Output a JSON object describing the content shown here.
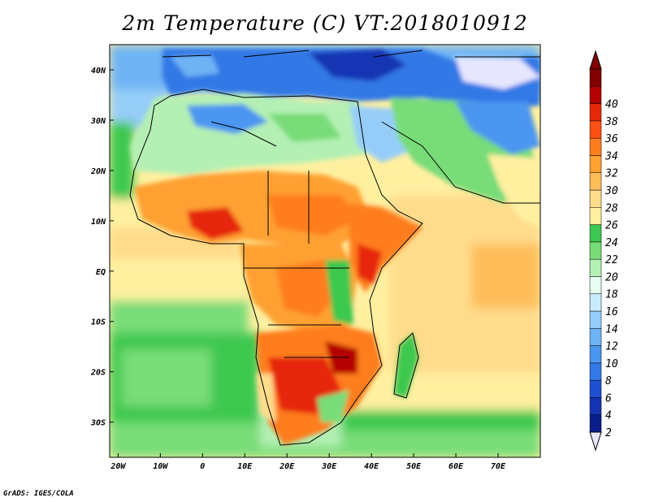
{
  "title": "2m Temperature (C) VT:2018010912",
  "credit": "GrADS: IGES/COLA",
  "map": {
    "lon_range": [
      -22,
      80
    ],
    "lat_range": [
      -37,
      45
    ],
    "lon_ticks": [
      {
        "value": -20,
        "label": "20W"
      },
      {
        "value": -10,
        "label": "10W"
      },
      {
        "value": 0,
        "label": "0"
      },
      {
        "value": 10,
        "label": "10E"
      },
      {
        "value": 20,
        "label": "20E"
      },
      {
        "value": 30,
        "label": "30E"
      },
      {
        "value": 40,
        "label": "40E"
      },
      {
        "value": 50,
        "label": "50E"
      },
      {
        "value": 60,
        "label": "60E"
      },
      {
        "value": 70,
        "label": "70E"
      }
    ],
    "lat_ticks": [
      {
        "value": 40,
        "label": "40N"
      },
      {
        "value": 30,
        "label": "30N"
      },
      {
        "value": 20,
        "label": "20N"
      },
      {
        "value": 10,
        "label": "10N"
      },
      {
        "value": 0,
        "label": "EQ"
      },
      {
        "value": -10,
        "label": "10S"
      },
      {
        "value": -20,
        "label": "20S"
      },
      {
        "value": -30,
        "label": "30S"
      }
    ]
  },
  "colorbar": {
    "levels": [
      "2",
      "4",
      "6",
      "8",
      "10",
      "12",
      "14",
      "16",
      "18",
      "20",
      "22",
      "24",
      "26",
      "28",
      "30",
      "32",
      "34",
      "36",
      "38",
      "40"
    ],
    "colors": [
      "#0a1e8c",
      "#1434b4",
      "#1e50d2",
      "#3278e6",
      "#4b96f0",
      "#6eb4f5",
      "#96cdf8",
      "#c8ebfa",
      "#e6fff0",
      "#b4f0b4",
      "#78dc78",
      "#3cc850",
      "#fff0a0",
      "#ffdc8c",
      "#ffbe5a",
      "#ffa032",
      "#ff7d1e",
      "#ff5014",
      "#e6280a",
      "#b40000",
      "#820000"
    ],
    "low_color": "#e6e6ff"
  }
}
